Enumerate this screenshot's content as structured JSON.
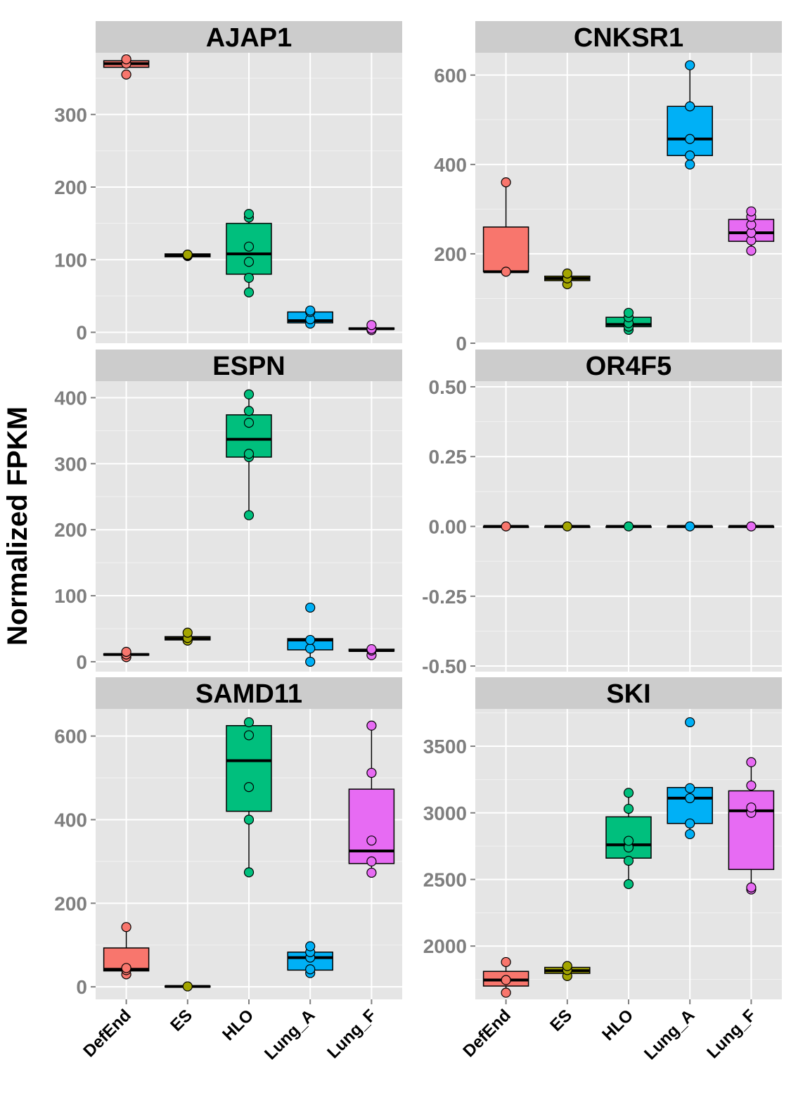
{
  "chart_data": {
    "type": "boxplot",
    "ylabel": "Normalized FPKM",
    "categories": [
      "DefEnd",
      "ES",
      "HLO",
      "Lung_A",
      "Lung_F"
    ],
    "colors": {
      "DefEnd": "#f8766d",
      "ES": "#a3a500",
      "HLO": "#00bf7d",
      "Lung_A": "#00b0f6",
      "Lung_F": "#e76bf3"
    },
    "panel_background": "#e5e5e5",
    "strip_background": "#cccccc",
    "grid": true,
    "facets": [
      {
        "title": "AJAP1",
        "ylim": [
          -15,
          385
        ],
        "yticks": [
          0,
          100,
          200,
          300
        ],
        "ytick_labels": [
          "0",
          "100",
          "200",
          "300"
        ],
        "boxes": [
          {
            "q1": 365,
            "median": 370,
            "q3": 374,
            "whisker_low": 365,
            "whisker_high": 374,
            "points": [
              355,
              370,
              376
            ]
          },
          {
            "q1": 104,
            "median": 106,
            "q3": 108,
            "whisker_low": 104,
            "whisker_high": 108,
            "points": [
              105,
              106,
              107
            ]
          },
          {
            "q1": 80,
            "median": 108,
            "q3": 150,
            "whisker_low": 55,
            "whisker_high": 163,
            "points": [
              55,
              75,
              97,
              118,
              158,
              163
            ]
          },
          {
            "q1": 13,
            "median": 16,
            "q3": 28,
            "whisker_low": 12,
            "whisker_high": 30,
            "points": [
              12,
              18,
              28,
              30
            ]
          },
          {
            "q1": 4,
            "median": 5,
            "q3": 6,
            "whisker_low": 3,
            "whisker_high": 10,
            "points": [
              3,
              5,
              10
            ]
          }
        ]
      },
      {
        "title": "CNKSR1",
        "ylim": [
          0,
          650
        ],
        "yticks": [
          0,
          200,
          400,
          600
        ],
        "ytick_labels": [
          "0",
          "200",
          "400",
          "600"
        ],
        "boxes": [
          {
            "q1": 160,
            "median": 160,
            "q3": 260,
            "whisker_low": 160,
            "whisker_high": 360,
            "points": [
              160,
              360
            ]
          },
          {
            "q1": 140,
            "median": 145,
            "q3": 150,
            "whisker_low": 132,
            "whisker_high": 156,
            "points": [
              132,
              145,
              156
            ]
          },
          {
            "q1": 37,
            "median": 42,
            "q3": 58,
            "whisker_low": 30,
            "whisker_high": 68,
            "points": [
              30,
              37,
              45,
              58,
              68
            ]
          },
          {
            "q1": 420,
            "median": 457,
            "q3": 530,
            "whisker_low": 400,
            "whisker_high": 622,
            "points": [
              400,
              420,
              457,
              530,
              622
            ]
          },
          {
            "q1": 228,
            "median": 247,
            "q3": 277,
            "whisker_low": 207,
            "whisker_high": 295,
            "points": [
              207,
              230,
              247,
              265,
              283,
              295
            ]
          }
        ]
      },
      {
        "title": "ESPN",
        "ylim": [
          -15,
          425
        ],
        "yticks": [
          0,
          100,
          200,
          300,
          400
        ],
        "ytick_labels": [
          "0",
          "100",
          "200",
          "300",
          "400"
        ],
        "boxes": [
          {
            "q1": 10,
            "median": 11,
            "q3": 12,
            "whisker_low": 7,
            "whisker_high": 15,
            "points": [
              7,
              11,
              15
            ]
          },
          {
            "q1": 33,
            "median": 35,
            "q3": 38,
            "whisker_low": 32,
            "whisker_high": 44,
            "points": [
              32,
              36,
              44
            ]
          },
          {
            "q1": 310,
            "median": 337,
            "q3": 374,
            "whisker_low": 222,
            "whisker_high": 405,
            "points": [
              222,
              310,
              315,
              362,
              380,
              405
            ]
          },
          {
            "q1": 18,
            "median": 33,
            "q3": 35,
            "whisker_low": 0,
            "whisker_high": 35,
            "points": [
              0,
              20,
              33,
              82
            ]
          },
          {
            "q1": 16,
            "median": 17,
            "q3": 19,
            "whisker_low": 10,
            "whisker_high": 20,
            "points": [
              10,
              17,
              19
            ]
          }
        ]
      },
      {
        "title": "OR4F5",
        "ylim": [
          -0.52,
          0.52
        ],
        "yticks": [
          -0.5,
          -0.25,
          0,
          0.25,
          0.5
        ],
        "ytick_labels": [
          "-0.50",
          "-0.25",
          "0.00",
          "0.25",
          "0.50"
        ],
        "boxes": [
          {
            "q1": 0,
            "median": 0,
            "q3": 0,
            "whisker_low": 0,
            "whisker_high": 0,
            "points": [
              0
            ]
          },
          {
            "q1": 0,
            "median": 0,
            "q3": 0,
            "whisker_low": 0,
            "whisker_high": 0,
            "points": [
              0
            ]
          },
          {
            "q1": 0,
            "median": 0,
            "q3": 0,
            "whisker_low": 0,
            "whisker_high": 0,
            "points": [
              0
            ]
          },
          {
            "q1": 0,
            "median": 0,
            "q3": 0,
            "whisker_low": 0,
            "whisker_high": 0,
            "points": [
              0
            ]
          },
          {
            "q1": 0,
            "median": 0,
            "q3": 0,
            "whisker_low": 0,
            "whisker_high": 0,
            "points": [
              0
            ]
          }
        ]
      },
      {
        "title": "SAMD11",
        "ylim": [
          -30,
          665
        ],
        "yticks": [
          0,
          200,
          400,
          600
        ],
        "ytick_labels": [
          "0",
          "200",
          "400",
          "600"
        ],
        "boxes": [
          {
            "q1": 38,
            "median": 42,
            "q3": 93,
            "whisker_low": 30,
            "whisker_high": 143,
            "points": [
              30,
              40,
              45,
              143
            ]
          },
          {
            "q1": 0,
            "median": 1,
            "q3": 2,
            "whisker_low": 0,
            "whisker_high": 2,
            "points": [
              1
            ]
          },
          {
            "q1": 420,
            "median": 541,
            "q3": 625,
            "whisker_low": 274,
            "whisker_high": 633,
            "points": [
              274,
              400,
              478,
              602,
              633
            ]
          },
          {
            "q1": 40,
            "median": 70,
            "q3": 83,
            "whisker_low": 33,
            "whisker_high": 97,
            "points": [
              33,
              42,
              70,
              83,
              97
            ]
          },
          {
            "q1": 295,
            "median": 325,
            "q3": 473,
            "whisker_low": 273,
            "whisker_high": 625,
            "points": [
              273,
              300,
              350,
              512,
              625
            ]
          }
        ]
      },
      {
        "title": "SKI",
        "ylim": [
          1600,
          3780
        ],
        "yticks": [
          2000,
          2500,
          3000,
          3500
        ],
        "ytick_labels": [
          "2000",
          "2500",
          "3000",
          "3500"
        ],
        "boxes": [
          {
            "q1": 1700,
            "median": 1745,
            "q3": 1810,
            "whisker_low": 1650,
            "whisker_high": 1880,
            "points": [
              1650,
              1745,
              1880
            ]
          },
          {
            "q1": 1795,
            "median": 1815,
            "q3": 1840,
            "whisker_low": 1775,
            "whisker_high": 1855,
            "points": [
              1775,
              1820,
              1850
            ]
          },
          {
            "q1": 2660,
            "median": 2760,
            "q3": 2970,
            "whisker_low": 2465,
            "whisker_high": 3150,
            "points": [
              2465,
              2640,
              2740,
              2790,
              3030,
              3150
            ]
          },
          {
            "q1": 2920,
            "median": 3110,
            "q3": 3190,
            "whisker_low": 2840,
            "whisker_high": 3190,
            "points": [
              2840,
              2920,
              3110,
              3185,
              3680
            ]
          },
          {
            "q1": 2575,
            "median": 3015,
            "q3": 3165,
            "whisker_low": 2430,
            "whisker_high": 3380,
            "points": [
              2425,
              2440,
              3000,
              3040,
              3205,
              3380
            ]
          }
        ]
      }
    ]
  }
}
